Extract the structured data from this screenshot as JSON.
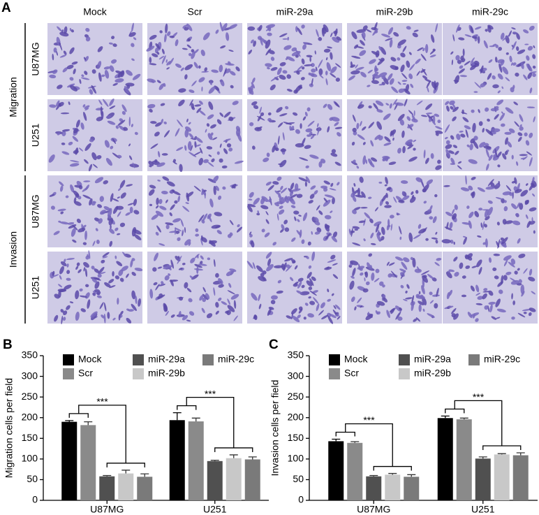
{
  "panel_a": {
    "label": "A",
    "columns": [
      "Mock",
      "Scr",
      "miR-29a",
      "miR-29b",
      "miR-29c"
    ],
    "groups": [
      {
        "name": "Migration",
        "rows": [
          "U87MG",
          "U251"
        ]
      },
      {
        "name": "Invasion",
        "rows": [
          "U87MG",
          "U251"
        ]
      }
    ]
  },
  "chart_data": [
    {
      "type": "bar",
      "panel_label": "B",
      "ylabel": "Migration cells per field",
      "categories": [
        "U87MG",
        "U251"
      ],
      "series": [
        {
          "name": "Mock",
          "color": "#000000",
          "values": [
            190,
            194
          ],
          "errors": [
            3,
            18
          ]
        },
        {
          "name": "Scr",
          "color": "#8a8a8a",
          "values": [
            182,
            191
          ],
          "errors": [
            8,
            8
          ]
        },
        {
          "name": "miR-29a",
          "color": "#505050",
          "values": [
            58,
            95
          ],
          "errors": [
            2,
            2
          ]
        },
        {
          "name": "miR-29b",
          "color": "#c8c8c8",
          "values": [
            65,
            102
          ],
          "errors": [
            8,
            8
          ]
        },
        {
          "name": "miR-29c",
          "color": "#7a7a7a",
          "values": [
            57,
            99
          ],
          "errors": [
            7,
            6
          ]
        }
      ],
      "ylim": [
        0,
        350
      ],
      "yticks": [
        0,
        50,
        100,
        150,
        200,
        250,
        300,
        350
      ],
      "annotations": [
        "***",
        "***"
      ]
    },
    {
      "type": "bar",
      "panel_label": "C",
      "ylabel": "Invasion cells per field",
      "categories": [
        "U87MG",
        "U251"
      ],
      "series": [
        {
          "name": "Mock",
          "color": "#000000",
          "values": [
            143,
            199
          ],
          "errors": [
            5,
            5
          ]
        },
        {
          "name": "Scr",
          "color": "#8a8a8a",
          "values": [
            139,
            196
          ],
          "errors": [
            3,
            3
          ]
        },
        {
          "name": "miR-29a",
          "color": "#505050",
          "values": [
            58,
            101
          ],
          "errors": [
            2,
            4
          ]
        },
        {
          "name": "miR-29b",
          "color": "#c8c8c8",
          "values": [
            62,
            111
          ],
          "errors": [
            3,
            2
          ]
        },
        {
          "name": "miR-29c",
          "color": "#7a7a7a",
          "values": [
            57,
            109
          ],
          "errors": [
            5,
            6
          ]
        }
      ],
      "ylim": [
        0,
        350
      ],
      "yticks": [
        0,
        50,
        100,
        150,
        200,
        250,
        300,
        350
      ],
      "annotations": [
        "***",
        "***"
      ]
    }
  ]
}
